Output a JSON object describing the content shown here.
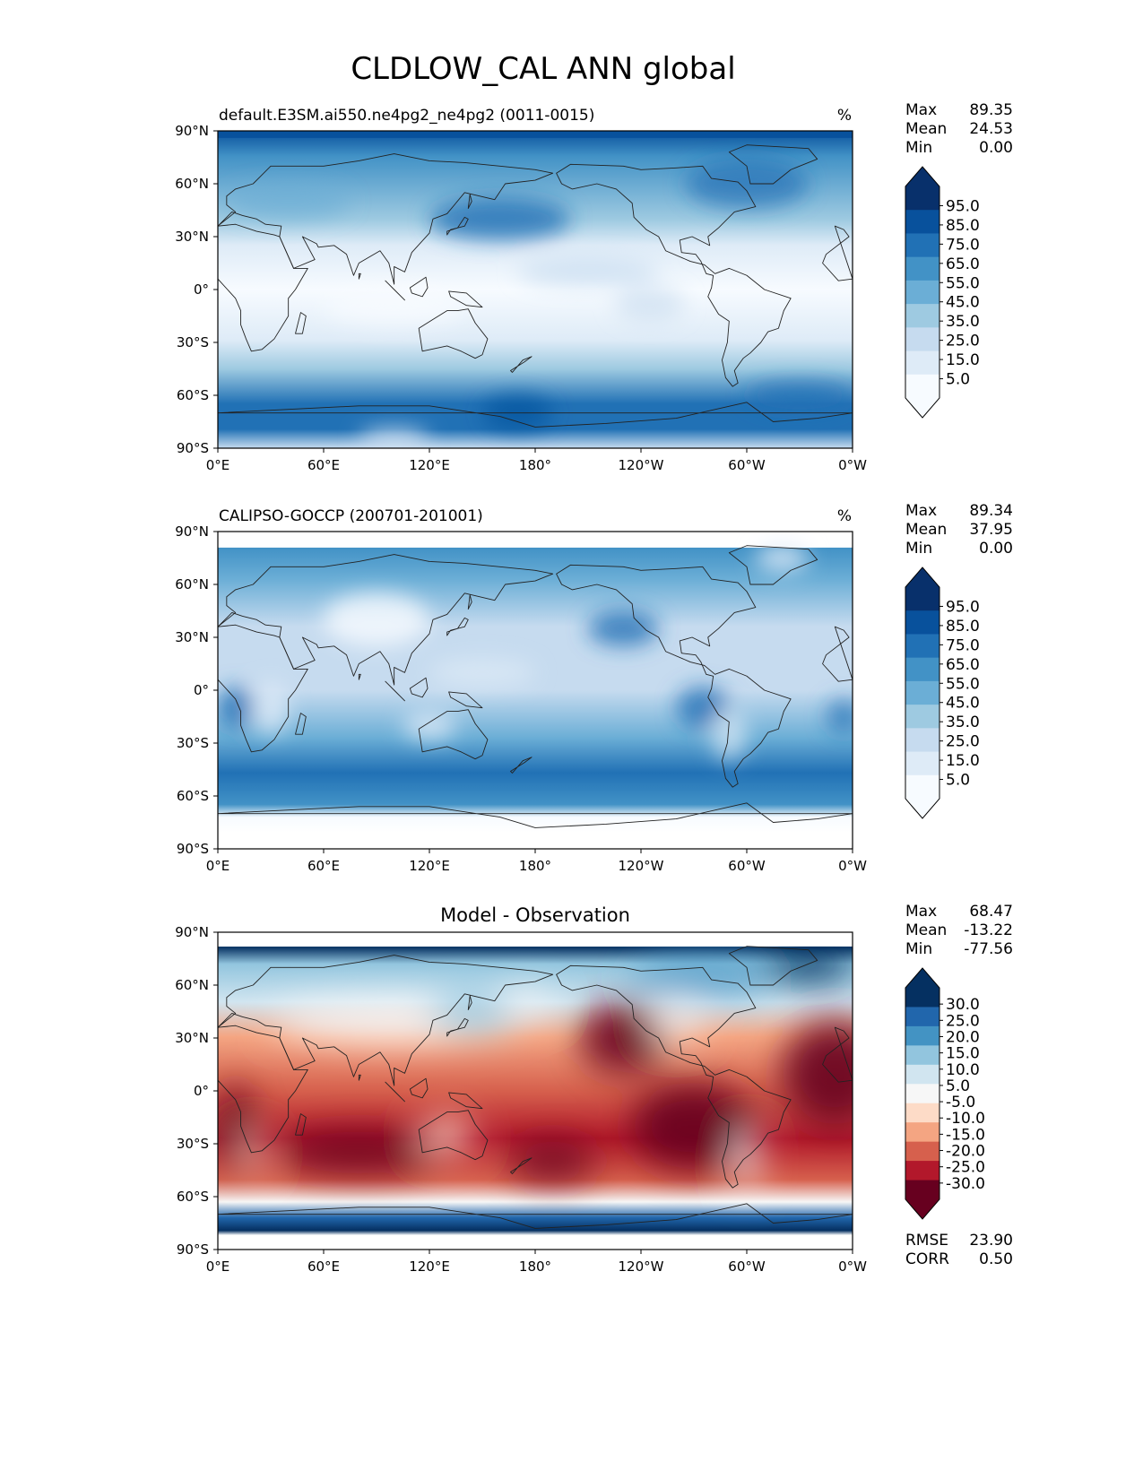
{
  "figure": {
    "title": "CLDLOW_CAL ANN global"
  },
  "axis_ticks": {
    "lat": [
      "90°N",
      "60°N",
      "30°N",
      "0°",
      "30°S",
      "60°S",
      "90°S"
    ],
    "lon": [
      "0°E",
      "60°E",
      "120°E",
      "180°",
      "120°W",
      "60°W",
      "0°W"
    ]
  },
  "colors": {
    "blues": [
      "#f7fbff",
      "#deebf7",
      "#c6dbef",
      "#9ecae1",
      "#6baed6",
      "#4292c6",
      "#2171b5",
      "#08519c",
      "#08306b"
    ],
    "diverging": [
      "#67001f",
      "#b2182b",
      "#d6604d",
      "#f4a582",
      "#fddbc7",
      "#f7f7f7",
      "#d1e5f0",
      "#92c5de",
      "#4393c3",
      "#2166ac",
      "#053061"
    ]
  },
  "panels": [
    {
      "id": "model",
      "title": "default.E3SM.ai550.ne4pg2_ne4pg2 (0011-0015)",
      "title_position": "left",
      "units": "%",
      "stats": [
        {
          "label": "Max",
          "value": "89.35"
        },
        {
          "label": "Mean",
          "value": "24.53"
        },
        {
          "label": "Min",
          "value": "0.00"
        }
      ],
      "colorbar": {
        "cmap": "blues",
        "extend": "both",
        "tick_labels": [
          "95.0",
          "85.0",
          "75.0",
          "65.0",
          "55.0",
          "45.0",
          "35.0",
          "25.0",
          "15.0",
          "5.0"
        ]
      }
    },
    {
      "id": "obs",
      "title": "CALIPSO-GOCCP (200701-201001)",
      "title_position": "left",
      "units": "%",
      "stats": [
        {
          "label": "Max",
          "value": "89.34"
        },
        {
          "label": "Mean",
          "value": "37.95"
        },
        {
          "label": "Min",
          "value": "0.00"
        }
      ],
      "colorbar": {
        "cmap": "blues",
        "extend": "both",
        "tick_labels": [
          "95.0",
          "85.0",
          "75.0",
          "65.0",
          "55.0",
          "45.0",
          "35.0",
          "25.0",
          "15.0",
          "5.0"
        ]
      }
    },
    {
      "id": "diff",
      "title": "Model - Observation",
      "title_position": "center",
      "units": "",
      "stats": [
        {
          "label": "Max",
          "value": "68.47"
        },
        {
          "label": "Mean",
          "value": "-13.22"
        },
        {
          "label": "Min",
          "value": "-77.56"
        }
      ],
      "colorbar": {
        "cmap": "diverging",
        "extend": "both",
        "tick_labels": [
          "30.0",
          "25.0",
          "20.0",
          "15.0",
          "10.0",
          "5.0",
          "-5.0",
          "-10.0",
          "-15.0",
          "-20.0",
          "-25.0",
          "-30.0"
        ]
      },
      "extra_stats": [
        {
          "label": "RMSE",
          "value": "23.90"
        },
        {
          "label": "CORR",
          "value": "0.50"
        }
      ]
    }
  ]
}
